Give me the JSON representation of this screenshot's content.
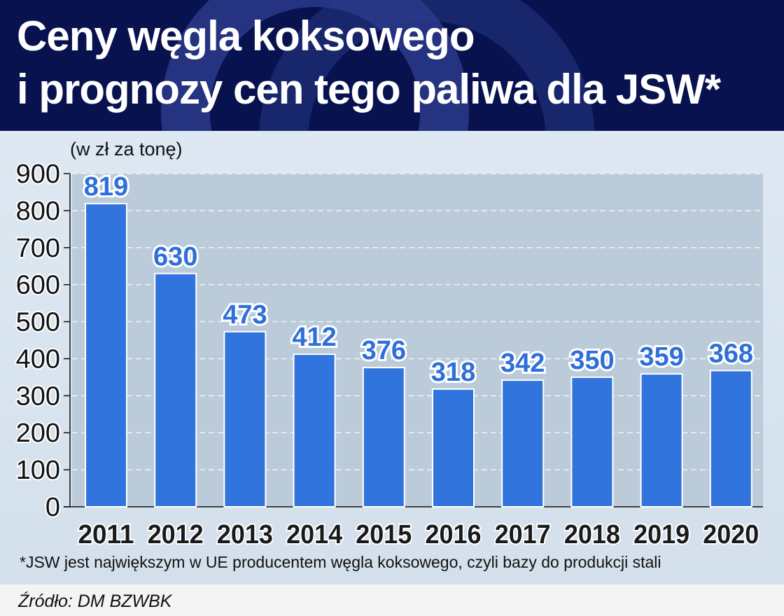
{
  "title": {
    "line1": "Ceny węgla koksowego",
    "line2": "i prognozy cen tego paliwa dla JSW*"
  },
  "chart_data": {
    "type": "bar",
    "title": "Ceny węgla koksowego i prognozy cen tego paliwa dla JSW*",
    "ylabel": "(w zł za tonę)",
    "categories": [
      "2011",
      "2012",
      "2013",
      "2014",
      "2015",
      "2016",
      "2017",
      "2018",
      "2019",
      "2020"
    ],
    "values": [
      819,
      630,
      473,
      412,
      376,
      318,
      342,
      350,
      359,
      368
    ],
    "ylim": [
      0,
      900
    ],
    "yticks": [
      0,
      100,
      200,
      300,
      400,
      500,
      600,
      700,
      800,
      900
    ],
    "grid": true,
    "colors": {
      "bar": "#3174dd",
      "label": "#2f6fd8"
    }
  },
  "footnote": "*JSW jest największym w UE producentem węgla koksowego, czyli bazy do produkcji stali",
  "source": "Źródło: DM BZWBK"
}
